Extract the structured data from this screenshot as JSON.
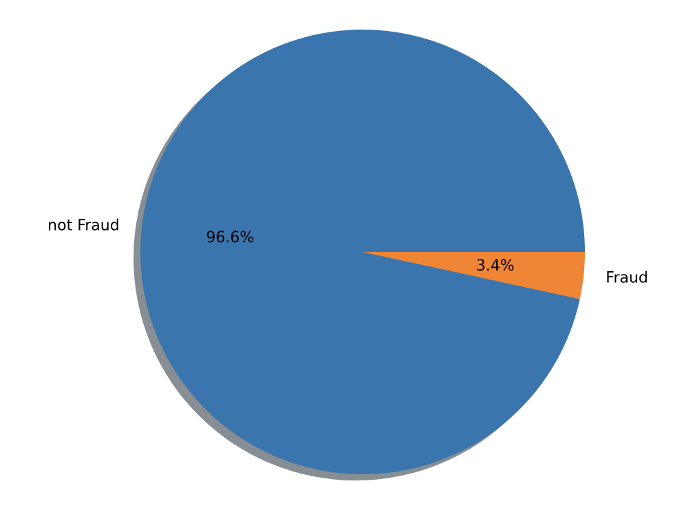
{
  "chart_data": {
    "type": "pie",
    "title": "",
    "shadow": true,
    "start_angle_deg": 0,
    "direction": "counterclockwise",
    "legend": "none",
    "slices": [
      {
        "label": "not Fraud",
        "value": 96.6,
        "pct_label": "96.6%",
        "color": "#3a75ae"
      },
      {
        "label": "Fraud",
        "value": 3.4,
        "pct_label": "3.4%",
        "color": "#ef8636"
      }
    ]
  }
}
